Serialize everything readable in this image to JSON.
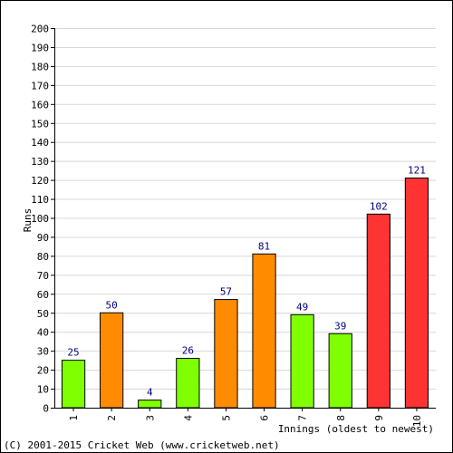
{
  "chart_data": {
    "type": "bar",
    "xlabel": "Innings (oldest to newest)",
    "ylabel": "Runs",
    "ylim": [
      0,
      200
    ],
    "yticks": [
      0,
      10,
      20,
      30,
      40,
      50,
      60,
      70,
      80,
      90,
      100,
      110,
      120,
      130,
      140,
      150,
      160,
      170,
      180,
      190,
      200
    ],
    "grid": true,
    "categories": [
      "1",
      "2",
      "3",
      "4",
      "5",
      "6",
      "7",
      "8",
      "9",
      "10"
    ],
    "values": [
      25,
      50,
      4,
      26,
      57,
      81,
      49,
      39,
      102,
      121
    ],
    "bar_colors": [
      "#80ff00",
      "#ff8c00",
      "#80ff00",
      "#80ff00",
      "#ff8c00",
      "#ff8c00",
      "#80ff00",
      "#80ff00",
      "#ff3333",
      "#ff3333"
    ]
  },
  "footer": {
    "copyright": "(C) 2001-2015 Cricket Web (www.cricketweb.net)"
  }
}
